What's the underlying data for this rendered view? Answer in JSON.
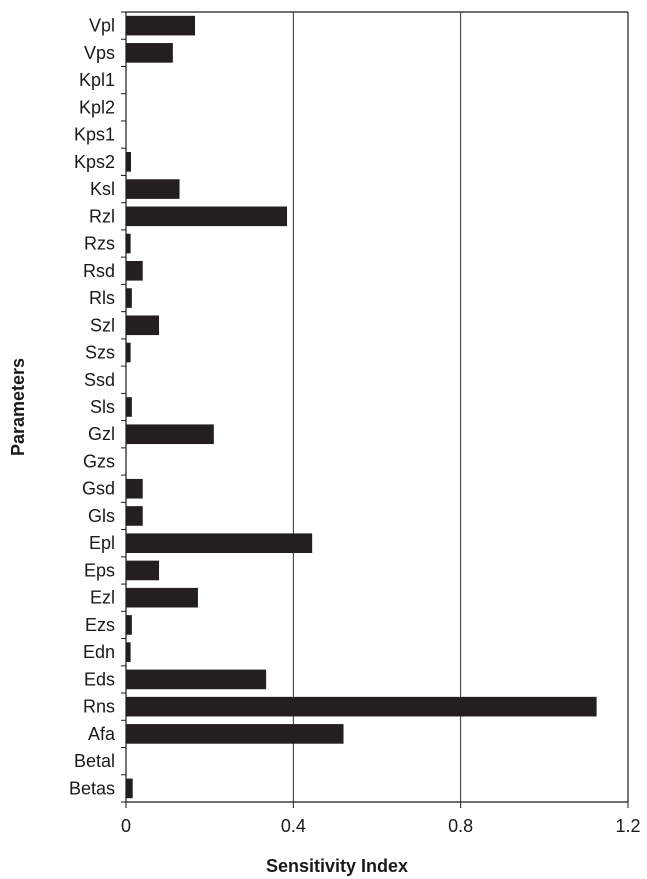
{
  "chart_data": {
    "type": "bar",
    "orientation": "horizontal",
    "xlabel": "Sensitivity Index",
    "ylabel": "Parameters",
    "xlim": [
      0,
      1.2
    ],
    "xticks": [
      0,
      0.4,
      0.8,
      1.2
    ],
    "xtick_labels": [
      "0",
      "0.4",
      "0.8",
      "1.2"
    ],
    "grid": "vertical",
    "bar_color": "#231f20",
    "categories": [
      "Vpl",
      "Vps",
      "Kpl1",
      "Kpl2",
      "Kps1",
      "Kps2",
      "Ksl",
      "Rzl",
      "Rzs",
      "Rsd",
      "Rls",
      "Szl",
      "Szs",
      "Ssd",
      "Sls",
      "Gzl",
      "Gzs",
      "Gsd",
      "Gls",
      "Epl",
      "Eps",
      "Ezl",
      "Ezs",
      "Edn",
      "Eds",
      "Rns",
      "Afa",
      "Betal",
      "Betas"
    ],
    "values": [
      0.165,
      0.112,
      0.0,
      0.0,
      0.0,
      0.012,
      0.128,
      0.385,
      0.011,
      0.04,
      0.014,
      0.079,
      0.011,
      0.0,
      0.014,
      0.21,
      0.0,
      0.04,
      0.04,
      0.445,
      0.079,
      0.172,
      0.014,
      0.011,
      0.335,
      1.125,
      0.52,
      0.0,
      0.016
    ]
  }
}
